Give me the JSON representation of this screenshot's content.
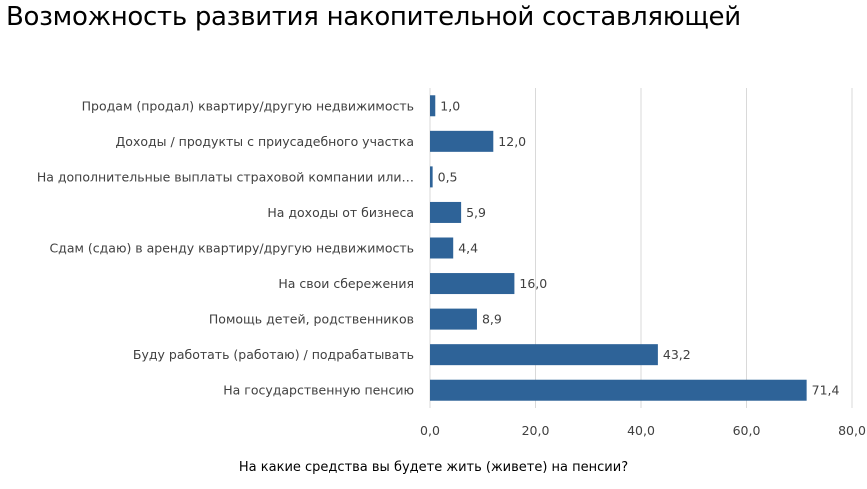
{
  "slide_title": "Возможность развития накопительной составляющей",
  "caption": "На какие средства вы будете жить (живете) на пенсии?",
  "colors": {
    "bar": "#2E6398",
    "grid": "#D9D9D9",
    "text": "#404040"
  },
  "chart_data": {
    "type": "bar",
    "orientation": "horizontal",
    "categories": [
      "Продам (продал) квартиру/другую недвижимость",
      "Доходы / продукты с приусадебного участка",
      "На дополнительные выплаты страховой компании или…",
      "На доходы от бизнеса",
      "Сдам (сдаю) в аренду квартиру/другую недвижимость",
      "На свои сбережения",
      "Помощь детей, родственников",
      "Буду работать (работаю) / подрабатывать",
      "На государственную пенсию"
    ],
    "values": [
      1.0,
      12.0,
      0.5,
      5.9,
      4.4,
      16.0,
      8.9,
      43.2,
      71.4
    ],
    "value_labels": [
      "1,0",
      "12,0",
      "0,5",
      "5,9",
      "4,4",
      "16,0",
      "8,9",
      "43,2",
      "71,4"
    ],
    "xlim": [
      0,
      80
    ],
    "ticks": [
      0,
      20,
      40,
      60,
      80
    ],
    "tick_labels": [
      "0,0",
      "20,0",
      "40,0",
      "60,0",
      "80,0"
    ],
    "grid": "vertical",
    "legend": "none"
  }
}
